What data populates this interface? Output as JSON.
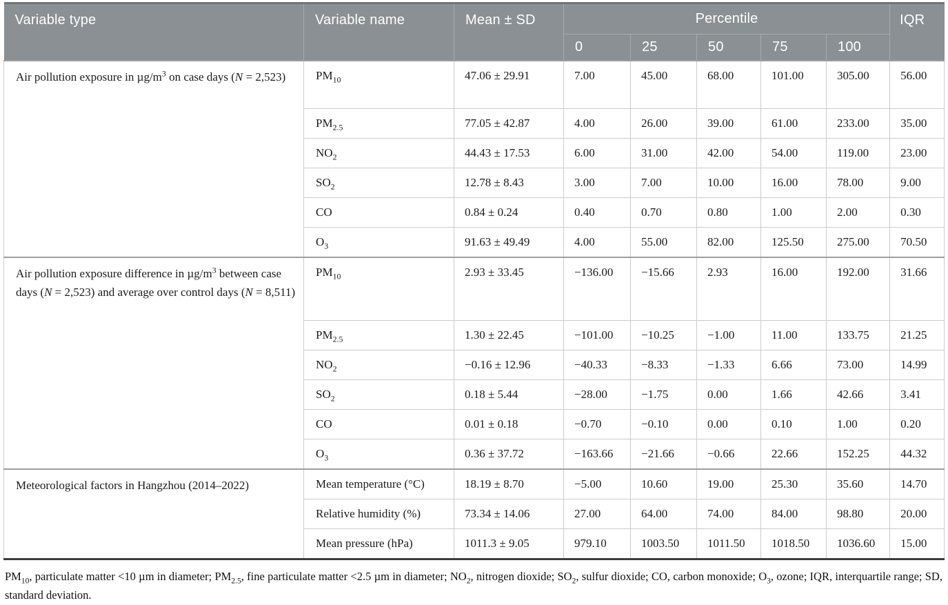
{
  "colors": {
    "header_background": "#8a9094",
    "header_text": "#ffffff",
    "row_divider": "#c9cbcc",
    "section_divider": "#9b9ea0",
    "table_bottom_border": "#3b3e40"
  },
  "header": {
    "variable_type": "Variable type",
    "variable_name": "Variable name",
    "mean_sd": "Mean ± SD",
    "percentile": "Percentile",
    "percentile_levels": [
      "0",
      "25",
      "50",
      "75",
      "100"
    ],
    "iqr": "IQR"
  },
  "sections": [
    {
      "variable_type": "Air pollution exposure in µg/m^3^ on case days (*N* = 2,523)",
      "rows": [
        {
          "name": "PM~10~",
          "mean_sd": "47.06 ± 29.91",
          "p0": "7.00",
          "p25": "45.00",
          "p50": "68.00",
          "p75": "101.00",
          "p100": "305.00",
          "iqr": "56.00"
        },
        {
          "name": "PM~2.5~",
          "mean_sd": "77.05 ± 42.87",
          "p0": "4.00",
          "p25": "26.00",
          "p50": "39.00",
          "p75": "61.00",
          "p100": "233.00",
          "iqr": "35.00"
        },
        {
          "name": "NO~2~",
          "mean_sd": "44.43 ± 17.53",
          "p0": "6.00",
          "p25": "31.00",
          "p50": "42.00",
          "p75": "54.00",
          "p100": "119.00",
          "iqr": "23.00"
        },
        {
          "name": "SO~2~",
          "mean_sd": "12.78 ± 8.43",
          "p0": "3.00",
          "p25": "7.00",
          "p50": "10.00",
          "p75": "16.00",
          "p100": "78.00",
          "iqr": "9.00"
        },
        {
          "name": "CO",
          "mean_sd": "0.84 ± 0.24",
          "p0": "0.40",
          "p25": "0.70",
          "p50": "0.80",
          "p75": "1.00",
          "p100": "2.00",
          "iqr": "0.30"
        },
        {
          "name": "O~3~",
          "mean_sd": "91.63 ± 49.49",
          "p0": "4.00",
          "p25": "55.00",
          "p50": "82.00",
          "p75": "125.50",
          "p100": "275.00",
          "iqr": "70.50"
        }
      ]
    },
    {
      "variable_type": "Air pollution exposure difference in µg/m^3^ between case days (*N* = 2,523) and average over control days (*N* = 8,511)",
      "rows": [
        {
          "name": "PM~10~",
          "mean_sd": "2.93 ± 33.45",
          "p0": "−136.00",
          "p25": "−15.66",
          "p50": "2.93",
          "p75": "16.00",
          "p100": "192.00",
          "iqr": "31.66"
        },
        {
          "name": "PM~2.5~",
          "mean_sd": "1.30 ± 22.45",
          "p0": "−101.00",
          "p25": "−10.25",
          "p50": "−1.00",
          "p75": "11.00",
          "p100": "133.75",
          "iqr": "21.25"
        },
        {
          "name": "NO~2~",
          "mean_sd": "−0.16 ± 12.96",
          "p0": "−40.33",
          "p25": "−8.33",
          "p50": "−1.33",
          "p75": "6.66",
          "p100": "73.00",
          "iqr": "14.99"
        },
        {
          "name": "SO~2~",
          "mean_sd": "0.18 ± 5.44",
          "p0": "−28.00",
          "p25": "−1.75",
          "p50": "0.00",
          "p75": "1.66",
          "p100": "42.66",
          "iqr": "3.41"
        },
        {
          "name": "CO",
          "mean_sd": "0.01 ± 0.18",
          "p0": "−0.70",
          "p25": "−0.10",
          "p50": "0.00",
          "p75": "0.10",
          "p100": "1.00",
          "iqr": "0.20"
        },
        {
          "name": "O~3~",
          "mean_sd": "0.36 ± 37.72",
          "p0": "−163.66",
          "p25": "−21.66",
          "p50": "−0.66",
          "p75": "22.66",
          "p100": "152.25",
          "iqr": "44.32"
        }
      ]
    },
    {
      "variable_type": "Meteorological factors in Hangzhou (2014–2022)",
      "rows": [
        {
          "name": "Mean temperature (°C)",
          "mean_sd": "18.19 ± 8.70",
          "p0": "−5.00",
          "p25": "10.60",
          "p50": "19.00",
          "p75": "25.30",
          "p100": "35.60",
          "iqr": "14.70"
        },
        {
          "name": "Relative humidity (%)",
          "mean_sd": "73.34 ± 14.06",
          "p0": "27.00",
          "p25": "64.00",
          "p50": "74.00",
          "p75": "84.00",
          "p100": "98.80",
          "iqr": "20.00"
        },
        {
          "name": "Mean pressure (hPa)",
          "mean_sd": "1011.3 ± 9.05",
          "p0": "979.10",
          "p25": "1003.50",
          "p50": "1011.50",
          "p75": "1018.50",
          "p100": "1036.60",
          "iqr": "15.00"
        }
      ]
    }
  ],
  "footnote": "PM~10~, particulate matter <10 µm in diameter; PM~2.5~, fine particulate matter <2.5 µm in diameter; NO~2~, nitrogen dioxide; SO~2~, sulfur dioxide; CO, carbon monoxide; O~3~, ozone; IQR, interquartile range; SD, standard deviation."
}
